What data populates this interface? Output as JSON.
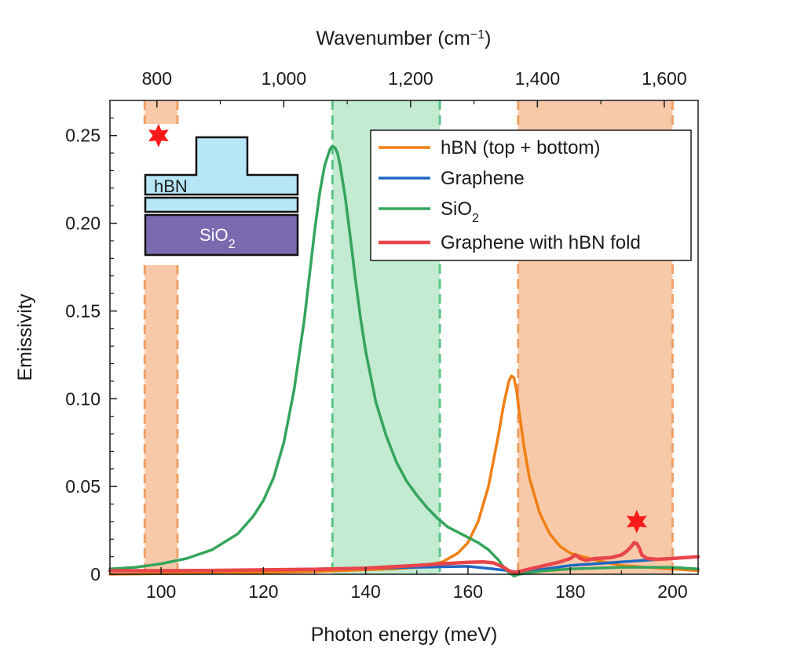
{
  "chart_data": {
    "type": "line",
    "xlabel": "Photon energy (meV)",
    "ylabel": "Emissivity",
    "top_xlabel": "Wavenumber (cm",
    "top_xlabel_sup": "−1",
    "top_xlabel_end": ")",
    "xlim": [
      90,
      205
    ],
    "ylim": [
      0,
      0.27
    ],
    "x_ticks": [
      100,
      120,
      140,
      160,
      180,
      200
    ],
    "x_tick_labels": [
      "100",
      "120",
      "140",
      "160",
      "180",
      "200"
    ],
    "y_ticks": [
      0,
      0.05,
      0.1,
      0.15,
      0.2,
      0.25
    ],
    "y_tick_labels": [
      "0",
      "0.05",
      "0.10",
      "0.15",
      "0.20",
      "0.25"
    ],
    "top_ticks_cm": [
      800,
      1000,
      1200,
      1400,
      1600
    ],
    "top_tick_labels": [
      "800",
      "1,000",
      "1,200",
      "1,400",
      "1,600"
    ],
    "shaded_bands": [
      {
        "name": "hBN lower reststrahlen band",
        "x": [
          96.8,
          103.2
        ],
        "color": "#f8c9a8"
      },
      {
        "name": "SiO2 band",
        "x": [
          133.5,
          154.5
        ],
        "color": "#c2ebd2"
      },
      {
        "name": "hBN upper reststrahlen band",
        "x": [
          169.8,
          200.0
        ],
        "color": "#f8c9a8"
      }
    ],
    "series": [
      {
        "name": "hBN (top + bottom)",
        "color": "#f07f12",
        "x": [
          90,
          100,
          110,
          120,
          130,
          140,
          145,
          150,
          155,
          158,
          160,
          162,
          164,
          165,
          166,
          167,
          168,
          168.5,
          169,
          169.5,
          170,
          171,
          172,
          174,
          176,
          178,
          180,
          185,
          190,
          195,
          200,
          205
        ],
        "y": [
          0,
          0.0003,
          0.0006,
          0.001,
          0.0015,
          0.0025,
          0.003,
          0.004,
          0.007,
          0.012,
          0.018,
          0.03,
          0.05,
          0.065,
          0.08,
          0.097,
          0.11,
          0.113,
          0.112,
          0.105,
          0.093,
          0.072,
          0.055,
          0.035,
          0.023,
          0.016,
          0.012,
          0.008,
          0.005,
          0.004,
          0.003,
          0.002
        ]
      },
      {
        "name": "Graphene",
        "color": "#1f67c4",
        "x": [
          90,
          100,
          110,
          120,
          130,
          140,
          150,
          160,
          165,
          168,
          170,
          175,
          180,
          185,
          190,
          195,
          200
        ],
        "y": [
          0.002,
          0.002,
          0.0022,
          0.0025,
          0.003,
          0.0035,
          0.004,
          0.0045,
          0.003,
          0.002,
          0.001,
          0.003,
          0.005,
          0.006,
          0.007,
          0.008,
          0.009
        ]
      },
      {
        "name": "SiO₂",
        "color": "#34a55c",
        "x": [
          90,
          95,
          100,
          105,
          110,
          115,
          118,
          120,
          122,
          124,
          126,
          128,
          129,
          130,
          131,
          132,
          133,
          133.5,
          134,
          134.5,
          135,
          136,
          137,
          138,
          139,
          140,
          142,
          144,
          146,
          148,
          150,
          152,
          154,
          156,
          158,
          160,
          162,
          164,
          166,
          167,
          168,
          169,
          170,
          172,
          175,
          180,
          185,
          190,
          195,
          200,
          205
        ],
        "y": [
          0.003,
          0.004,
          0.006,
          0.009,
          0.014,
          0.023,
          0.033,
          0.042,
          0.055,
          0.075,
          0.105,
          0.145,
          0.17,
          0.195,
          0.217,
          0.233,
          0.242,
          0.244,
          0.243,
          0.24,
          0.233,
          0.215,
          0.192,
          0.168,
          0.146,
          0.127,
          0.098,
          0.079,
          0.064,
          0.053,
          0.045,
          0.038,
          0.032,
          0.027,
          0.024,
          0.021,
          0.018,
          0.014,
          0.008,
          0.004,
          0.001,
          -0.001,
          0,
          0.001,
          0.002,
          0.003,
          0.0035,
          0.004,
          0.004,
          0.004,
          0.003
        ]
      },
      {
        "name": "Graphene with hBN fold",
        "color": "#e8464a",
        "x": [
          90,
          100,
          110,
          120,
          130,
          140,
          150,
          155,
          160,
          163,
          165,
          167,
          168,
          169,
          170,
          172,
          175,
          178,
          180,
          181,
          182,
          183,
          185,
          188,
          190,
          191,
          192,
          192.5,
          193,
          193.5,
          194,
          195,
          197,
          200,
          205
        ],
        "y": [
          0.002,
          0.002,
          0.0022,
          0.0025,
          0.0028,
          0.0035,
          0.005,
          0.006,
          0.0068,
          0.007,
          0.0065,
          0.004,
          0.002,
          0.001,
          0.0015,
          0.003,
          0.005,
          0.007,
          0.009,
          0.011,
          0.009,
          0.008,
          0.009,
          0.0095,
          0.011,
          0.013,
          0.016,
          0.018,
          0.0175,
          0.015,
          0.011,
          0.009,
          0.0085,
          0.009,
          0.01
        ]
      }
    ],
    "legend": {
      "position": "top-right",
      "entries": [
        {
          "label": "hBN (top + bottom)",
          "color": "#f07f12"
        },
        {
          "label": "Graphene",
          "color": "#1f67c4"
        },
        {
          "label": "SiO",
          "sub": "2",
          "color": "#34a55c"
        },
        {
          "label": "Graphene with hBN fold",
          "color": "#e8464a"
        }
      ]
    },
    "annotations": [
      {
        "type": "star",
        "x": 99.5,
        "y": 0.25,
        "color": "#ff1a1a"
      },
      {
        "type": "star",
        "x": 193.0,
        "y": 0.03,
        "color": "#ff1a1a"
      }
    ],
    "inset": {
      "hbn_label": "hBN",
      "sio2_label": "SiO",
      "sio2_sub": "2",
      "hbn_color": "#b7e6f7",
      "sio2_color": "#7a6bb0"
    }
  }
}
